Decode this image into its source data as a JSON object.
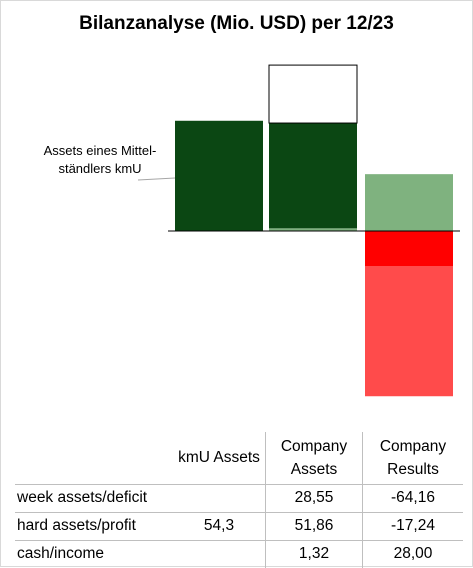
{
  "chart_data": {
    "type": "bar",
    "stacked": true,
    "title": "Bilanzanalyse  (Mio. USD) per 12/23",
    "annotation": "Assets eines Mittel-ständlers kmU",
    "columns": [
      "kmU Assets",
      "Company Assets",
      "Company Results"
    ],
    "series": [
      {
        "name": "week assets/deficit",
        "values": [
          null,
          28.55,
          -64.16
        ],
        "colors": [
          "#ffffff",
          "#ffffff",
          "#ff4b4b"
        ]
      },
      {
        "name": "hard assets/profit",
        "values": [
          54.3,
          51.86,
          -17.24
        ],
        "colors": [
          "#0b4713",
          "#0b4713",
          "#ff0000"
        ]
      },
      {
        "name": "cash/income",
        "values": [
          null,
          1.32,
          28.0
        ],
        "colors": [
          "#7fb27f",
          "#7fb27f",
          "#7fb27f"
        ]
      }
    ]
  },
  "table": {
    "headers": [
      "kmU Assets",
      "Company Assets",
      "Company Results"
    ],
    "rows": [
      {
        "label": "week assets/deficit",
        "values": [
          "",
          "28,55",
          "-64,16"
        ]
      },
      {
        "label": "hard assets/profit",
        "values": [
          "54,3",
          "51,86",
          "-17,24"
        ]
      },
      {
        "label": "cash/income",
        "values": [
          "",
          "1,32",
          "28,00"
        ]
      }
    ]
  }
}
